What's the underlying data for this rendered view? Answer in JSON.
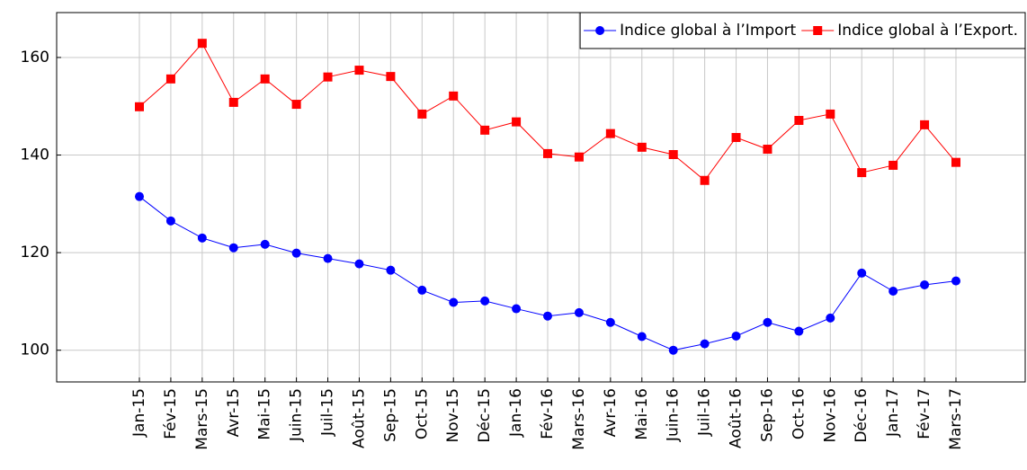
{
  "chart_data": {
    "type": "line",
    "categories": [
      "Jan-15",
      "Fév-15",
      "Mars-15",
      "Avr-15",
      "Mai-15",
      "Juin-15",
      "Juil-15",
      "Août-15",
      "Sep-15",
      "Oct-15",
      "Nov-15",
      "Déc-15",
      "Jan-16",
      "Fév-16",
      "Mars-16",
      "Avr-16",
      "Mai-16",
      "Juin-16",
      "Juil-16",
      "Août-16",
      "Sep-16",
      "Oct-16",
      "Nov-16",
      "Déc-16",
      "Jan-17",
      "Fév-17",
      "Mars-17"
    ],
    "series": [
      {
        "name": "Indice global à l’Import",
        "color": "#0000ff",
        "marker": "circle",
        "values": [
          131.5,
          126.5,
          123.0,
          121.0,
          121.7,
          119.9,
          118.8,
          117.7,
          116.4,
          112.3,
          109.8,
          110.1,
          108.5,
          107.0,
          107.7,
          105.7,
          102.8,
          100.0,
          101.3,
          102.9,
          105.7,
          103.9,
          106.6,
          115.8,
          112.1,
          113.4,
          114.2
        ]
      },
      {
        "name": "Indice global à l’Export.",
        "color": "#ff0000",
        "marker": "square",
        "values": [
          149.9,
          155.6,
          162.9,
          150.8,
          155.6,
          150.4,
          156.0,
          157.4,
          156.1,
          148.4,
          152.1,
          145.1,
          146.8,
          140.3,
          139.6,
          144.4,
          141.6,
          140.1,
          134.8,
          143.6,
          141.2,
          147.1,
          148.4,
          136.4,
          137.9,
          146.2,
          138.5
        ]
      }
    ],
    "ylim": [
      93.5,
      169.2
    ],
    "yticks": [
      100,
      120,
      140,
      160
    ],
    "grid": true,
    "legend": "top-right"
  }
}
